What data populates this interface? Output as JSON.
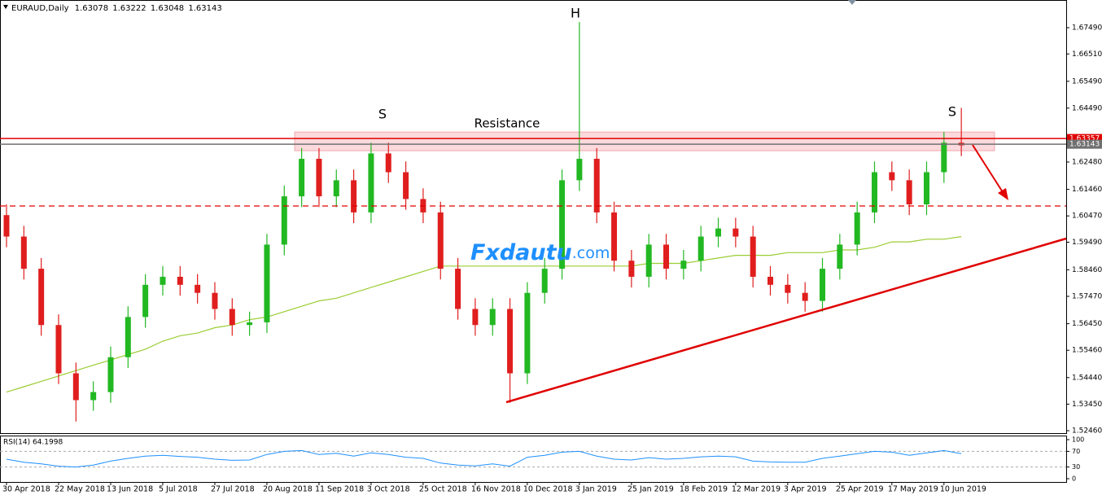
{
  "chart_data": [
    {
      "type": "candlestick",
      "title": "EURAUD,Daily",
      "header_values": [
        1.63078,
        1.63222,
        1.63048,
        1.63143
      ],
      "categories": [
        "30 Apr 2018",
        null,
        null,
        "22 May 2018",
        null,
        null,
        "13 Jun 2018",
        null,
        null,
        "5 Jul 2018",
        null,
        null,
        "27 Jul 2018",
        null,
        null,
        "20 Aug 2018",
        null,
        null,
        "11 Sep 2018",
        null,
        null,
        "3 Oct 2018",
        null,
        null,
        "25 Oct 2018",
        null,
        null,
        "16 Nov 2018",
        null,
        null,
        "10 Dec 2018",
        null,
        null,
        "3 Jan 2019",
        null,
        null,
        "25 Jan 2019",
        null,
        null,
        "18 Feb 2019",
        null,
        null,
        "12 Mar 2019",
        null,
        null,
        "3 Apr 2019",
        null,
        null,
        "25 Apr 2019",
        null,
        null,
        "17 May 2019",
        null,
        null,
        "10 Jun 2019",
        null
      ],
      "open": [
        1.605,
        1.597,
        1.585,
        1.564,
        1.546,
        1.536,
        1.539,
        1.552,
        1.567,
        1.579,
        1.582,
        1.579,
        1.576,
        1.57,
        1.564,
        1.565,
        1.594,
        1.612,
        1.626,
        1.612,
        1.618,
        1.606,
        1.628,
        1.621,
        1.611,
        1.606,
        1.585,
        1.57,
        1.564,
        1.57,
        1.546,
        1.576,
        1.585,
        1.618,
        1.626,
        1.606,
        1.588,
        1.582,
        1.594,
        1.585,
        1.588,
        1.597,
        1.6,
        1.597,
        1.582,
        1.579,
        1.576,
        1.573,
        1.585,
        1.594,
        1.606,
        1.621,
        1.618,
        1.609,
        1.621,
        1.632
      ],
      "high": [
        1.609,
        1.601,
        1.589,
        1.568,
        1.55,
        1.543,
        1.556,
        1.571,
        1.583,
        1.586,
        1.586,
        1.583,
        1.58,
        1.574,
        1.569,
        1.598,
        1.616,
        1.63,
        1.63,
        1.622,
        1.622,
        1.632,
        1.632,
        1.625,
        1.615,
        1.61,
        1.589,
        1.574,
        1.574,
        1.574,
        1.58,
        1.589,
        1.622,
        1.677,
        1.63,
        1.61,
        1.592,
        1.598,
        1.598,
        1.592,
        1.601,
        1.604,
        1.604,
        1.601,
        1.586,
        1.583,
        1.58,
        1.589,
        1.598,
        1.61,
        1.625,
        1.625,
        1.622,
        1.625,
        1.636,
        1.645
      ],
      "low": [
        1.593,
        1.581,
        1.56,
        1.542,
        1.528,
        1.532,
        1.535,
        1.548,
        1.563,
        1.575,
        1.575,
        1.572,
        1.566,
        1.56,
        1.56,
        1.561,
        1.59,
        1.608,
        1.608,
        1.608,
        1.602,
        1.602,
        1.617,
        1.607,
        1.602,
        1.581,
        1.566,
        1.56,
        1.56,
        1.535,
        1.542,
        1.572,
        1.581,
        1.614,
        1.602,
        1.584,
        1.578,
        1.578,
        1.581,
        1.581,
        1.584,
        1.593,
        1.593,
        1.578,
        1.575,
        1.572,
        1.569,
        1.569,
        1.581,
        1.59,
        1.602,
        1.614,
        1.605,
        1.605,
        1.617,
        1.627
      ],
      "close": [
        1.597,
        1.585,
        1.564,
        1.546,
        1.536,
        1.539,
        1.552,
        1.567,
        1.579,
        1.582,
        1.579,
        1.576,
        1.57,
        1.564,
        1.565,
        1.594,
        1.612,
        1.626,
        1.612,
        1.618,
        1.606,
        1.628,
        1.621,
        1.611,
        1.606,
        1.585,
        1.57,
        1.564,
        1.57,
        1.546,
        1.576,
        1.585,
        1.618,
        1.626,
        1.606,
        1.588,
        1.582,
        1.594,
        1.585,
        1.588,
        1.597,
        1.6,
        1.597,
        1.582,
        1.579,
        1.576,
        1.573,
        1.585,
        1.594,
        1.606,
        1.621,
        1.618,
        1.609,
        1.621,
        1.632,
        1.631
      ],
      "up_color": "#22b822",
      "down_color": "#e01e1e",
      "series": [
        {
          "color": "#9acd32",
          "values": [
            1.539,
            1.541,
            1.543,
            1.545,
            1.547,
            1.549,
            1.551,
            1.553,
            1.555,
            1.558,
            1.56,
            1.561,
            1.563,
            1.564,
            1.566,
            1.567,
            1.569,
            1.571,
            1.573,
            1.574,
            1.576,
            1.578,
            1.58,
            1.582,
            1.584,
            1.586,
            1.586,
            1.586,
            1.586,
            1.586,
            1.586,
            1.586,
            1.586,
            1.586,
            1.586,
            1.586,
            1.586,
            1.587,
            1.587,
            1.587,
            1.588,
            1.589,
            1.59,
            1.59,
            1.59,
            1.591,
            1.591,
            1.591,
            1.592,
            1.592,
            1.593,
            1.595,
            1.595,
            1.596,
            1.596,
            1.597
          ]
        }
      ],
      "ylim": [
        1.52369,
        1.68522
      ],
      "yticks": [
        {
          "value": 1.6749,
          "label": "1.67490"
        },
        {
          "value": 1.6651,
          "label": "1.66510"
        },
        {
          "value": 1.6549,
          "label": "1.65490"
        },
        {
          "value": 1.6449,
          "label": "1.64490"
        },
        {
          "value": 1.6248,
          "label": "1.62480"
        },
        {
          "value": 1.6146,
          "label": "1.61460"
        },
        {
          "value": 1.6047,
          "label": "1.60470"
        },
        {
          "value": 1.5949,
          "label": "1.59490"
        },
        {
          "value": 1.5846,
          "label": "1.58460"
        },
        {
          "value": 1.5747,
          "label": "1.57470"
        },
        {
          "value": 1.5645,
          "label": "1.56450"
        },
        {
          "value": 1.5546,
          "label": "1.55460"
        },
        {
          "value": 1.5444,
          "label": "1.54440"
        },
        {
          "value": 1.5345,
          "label": "1.53450"
        },
        {
          "value": 1.5246,
          "label": "1.52460"
        }
      ],
      "levels": [
        {
          "value": 1.63357,
          "color": "#e00000",
          "dashed": false,
          "boxed": true
        },
        {
          "value": 1.63143,
          "color": "#707070",
          "dashed": false,
          "boxed": true
        },
        {
          "value": 1.6084,
          "color": "#e00000",
          "dashed": true,
          "boxed": false
        }
      ],
      "resistance_zone": [
        1.629,
        1.636
      ],
      "resistance_label": "Resistance",
      "annotations": [
        "S",
        "H",
        "S"
      ],
      "watermark": [
        "Fxdautu",
        ".com"
      ]
    },
    {
      "type": "line",
      "title": "RSI(14) 64.1998",
      "color": "#1e90ff",
      "values": [
        50,
        42,
        38,
        32,
        30,
        35,
        45,
        52,
        58,
        60,
        57,
        55,
        50,
        47,
        48,
        62,
        70,
        72,
        62,
        65,
        58,
        66,
        62,
        55,
        52,
        40,
        35,
        33,
        38,
        32,
        55,
        60,
        68,
        70,
        58,
        50,
        48,
        54,
        50,
        52,
        56,
        58,
        56,
        45,
        43,
        42,
        42,
        52,
        58,
        64,
        70,
        68,
        60,
        66,
        72,
        64.1998
      ],
      "ylim": [
        0,
        100
      ],
      "yticks": [
        100,
        70,
        30,
        0
      ],
      "levels": [
        70,
        30
      ]
    }
  ]
}
